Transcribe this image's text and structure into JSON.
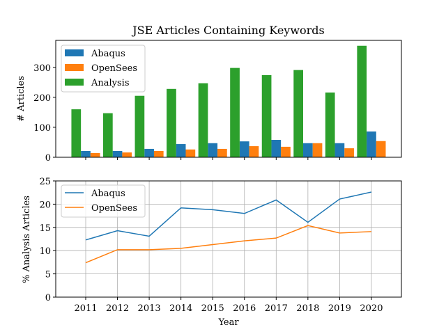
{
  "chart_data": [
    {
      "type": "bar",
      "title": "JSE Articles Containing Keywords",
      "xlabel": "",
      "ylabel": "# Articles",
      "categories": [
        "2011",
        "2012",
        "2013",
        "2014",
        "2015",
        "2016",
        "2017",
        "2018",
        "2019",
        "2020"
      ],
      "ylim": [
        0,
        390
      ],
      "yticks": [
        0,
        100,
        200,
        300
      ],
      "grid": false,
      "legend": "top-left",
      "series": [
        {
          "name": "Abaqus",
          "color": "#1f77b4",
          "values": [
            21,
            21,
            28,
            44,
            47,
            53,
            58,
            47,
            47,
            86
          ]
        },
        {
          "name": "OpenSees",
          "color": "#ff7f0e",
          "values": [
            14,
            16,
            21,
            26,
            28,
            37,
            35,
            47,
            30,
            54
          ]
        },
        {
          "name": "Analysis",
          "color": "#2ca02c",
          "values": [
            160,
            147,
            205,
            228,
            247,
            298,
            274,
            291,
            216,
            372
          ]
        }
      ]
    },
    {
      "type": "line",
      "title": "",
      "xlabel": "Year",
      "ylabel": "% Analysis Articles",
      "x": [
        "2011",
        "2012",
        "2013",
        "2014",
        "2015",
        "2016",
        "2017",
        "2018",
        "2019",
        "2020"
      ],
      "ylim": [
        0,
        25
      ],
      "yticks": [
        0,
        5,
        10,
        15,
        20,
        25
      ],
      "grid": true,
      "legend": "top-left",
      "series": [
        {
          "name": "Abaqus",
          "color": "#1f77b4",
          "values": [
            12.3,
            14.3,
            13.1,
            19.2,
            18.8,
            18.0,
            20.9,
            16.1,
            21.1,
            22.6
          ]
        },
        {
          "name": "OpenSees",
          "color": "#ff7f0e",
          "values": [
            7.4,
            10.2,
            10.2,
            10.5,
            11.3,
            12.1,
            12.7,
            15.4,
            13.8,
            14.1
          ]
        }
      ]
    }
  ]
}
